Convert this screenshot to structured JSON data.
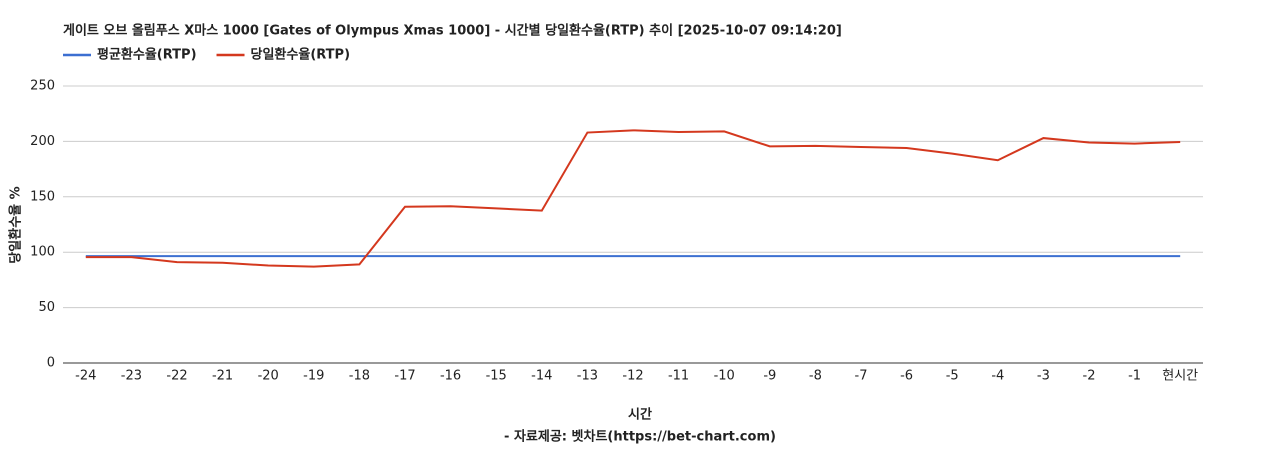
{
  "chart_data": {
    "type": "line",
    "title": "게이트 오브 올림푸스 X마스 1000 [Gates of Olympus Xmas 1000] - 시간별 당일환수율(RTP) 추이 [2025-10-07 09:14:20]",
    "x_label": "시간",
    "y_label": "당일환수율 %",
    "source": "- 자료제공: 벳차트(https://bet-chart.com)",
    "categories": [
      "-24",
      "-23",
      "-22",
      "-21",
      "-20",
      "-19",
      "-18",
      "-17",
      "-16",
      "-15",
      "-14",
      "-13",
      "-12",
      "-11",
      "-10",
      "-9",
      "-8",
      "-7",
      "-6",
      "-5",
      "-4",
      "-3",
      "-2",
      "-1",
      "현시간"
    ],
    "series": [
      {
        "name": "평균환수율(RTP)",
        "color": "#3c6fd1",
        "values": [
          96.5,
          96.5,
          96.5,
          96.5,
          96.5,
          96.5,
          96.5,
          96.5,
          96.5,
          96.5,
          96.5,
          96.5,
          96.5,
          96.5,
          96.5,
          96.5,
          96.5,
          96.5,
          96.5,
          96.5,
          96.5,
          96.5,
          96.5,
          96.5,
          96.5
        ]
      },
      {
        "name": "당일환수율(RTP)",
        "color": "#d4381e",
        "values": [
          95.5,
          95.5,
          91,
          90.5,
          88,
          87,
          89,
          141,
          141.5,
          139.5,
          137.5,
          208,
          210,
          208.5,
          209,
          195.5,
          196,
          195,
          194,
          189,
          183,
          203,
          199,
          198,
          199.5
        ]
      }
    ],
    "ylim": [
      0,
      250
    ],
    "yticks": [
      0,
      50,
      100,
      150,
      200,
      250
    ],
    "grid": true,
    "legend": "top-left"
  }
}
